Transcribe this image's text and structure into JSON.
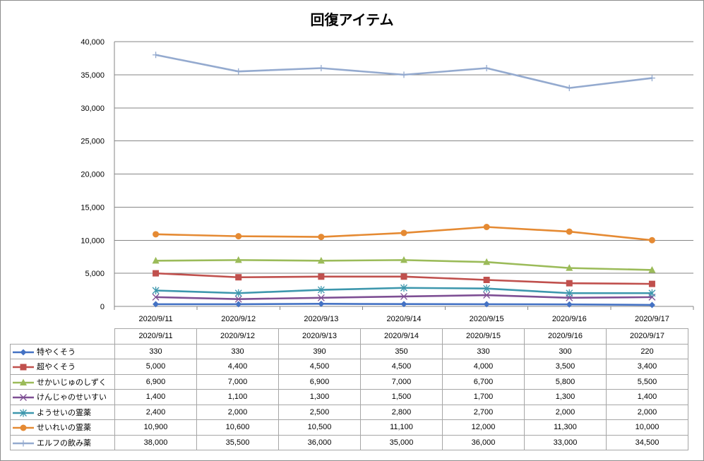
{
  "chart_data": {
    "type": "line",
    "title": "回復アイテム",
    "categories": [
      "2020/9/11",
      "2020/9/12",
      "2020/9/13",
      "2020/9/14",
      "2020/9/15",
      "2020/9/16",
      "2020/9/17"
    ],
    "ylim": [
      0,
      40000
    ],
    "yticks": [
      "0",
      "5,000",
      "10,000",
      "15,000",
      "20,000",
      "25,000",
      "30,000",
      "35,000",
      "40,000"
    ],
    "grid": true,
    "legend": "data-table",
    "series": [
      {
        "name": "特やくそう",
        "values": [
          330,
          330,
          390,
          350,
          330,
          300,
          220
        ],
        "labels": [
          "330",
          "330",
          "390",
          "350",
          "330",
          "300",
          "220"
        ],
        "color": "#4472C4",
        "marker": "diamond"
      },
      {
        "name": "超やくそう",
        "values": [
          5000,
          4400,
          4500,
          4500,
          4000,
          3500,
          3400
        ],
        "labels": [
          "5,000",
          "4,400",
          "4,500",
          "4,500",
          "4,000",
          "3,500",
          "3,400"
        ],
        "color": "#C0504D",
        "marker": "square"
      },
      {
        "name": "せかいじゅのしずく",
        "values": [
          6900,
          7000,
          6900,
          7000,
          6700,
          5800,
          5500
        ],
        "labels": [
          "6,900",
          "7,000",
          "6,900",
          "7,000",
          "6,700",
          "5,800",
          "5,500"
        ],
        "color": "#9BBB59",
        "marker": "triangle"
      },
      {
        "name": "けんじゃのせいすい",
        "values": [
          1400,
          1100,
          1300,
          1500,
          1700,
          1300,
          1400
        ],
        "labels": [
          "1,400",
          "1,100",
          "1,300",
          "1,500",
          "1,700",
          "1,300",
          "1,400"
        ],
        "color": "#7E4F94",
        "marker": "x"
      },
      {
        "name": "ようせいの霊薬",
        "values": [
          2400,
          2000,
          2500,
          2800,
          2700,
          2000,
          2000
        ],
        "labels": [
          "2,400",
          "2,000",
          "2,500",
          "2,800",
          "2,700",
          "2,000",
          "2,000"
        ],
        "color": "#3D97AD",
        "marker": "star"
      },
      {
        "name": "せいれいの霊薬",
        "values": [
          10900,
          10600,
          10500,
          11100,
          12000,
          11300,
          10000
        ],
        "labels": [
          "10,900",
          "10,600",
          "10,500",
          "11,100",
          "12,000",
          "11,300",
          "10,000"
        ],
        "color": "#E58A33",
        "marker": "circle"
      },
      {
        "name": "エルフの飲み薬",
        "values": [
          38000,
          35500,
          36000,
          35000,
          36000,
          33000,
          34500
        ],
        "labels": [
          "38,000",
          "35,500",
          "36,000",
          "35,000",
          "36,000",
          "33,000",
          "34,500"
        ],
        "color": "#94AACF",
        "marker": "plus"
      }
    ]
  }
}
